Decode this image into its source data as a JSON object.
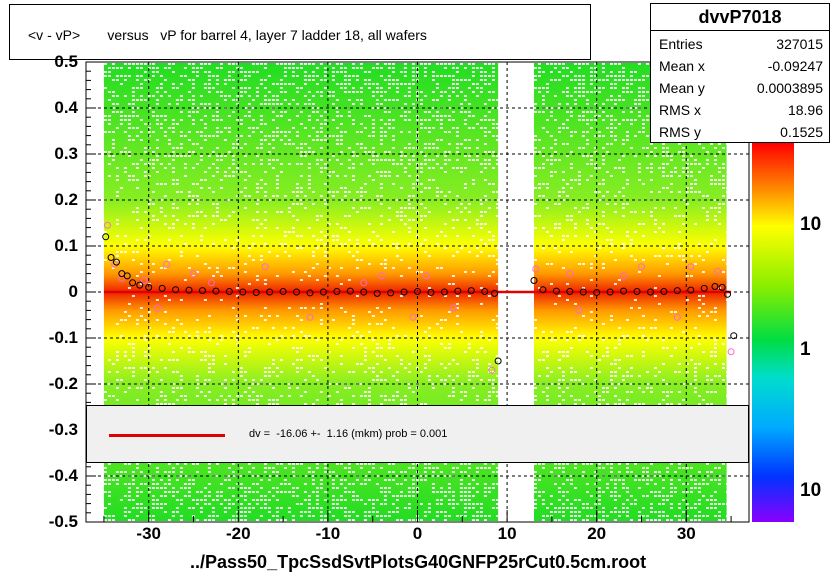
{
  "title": "<v - vP>       versus   vP for barrel 4, layer 7 ladder 18, all wafers",
  "file_label": "../Pass50_TpcSsdSvtPlotsG40GNFP25rCut0.5cm.root",
  "stats": {
    "name": "dvvP7018",
    "rows": [
      {
        "key": "Entries",
        "value": "327015"
      },
      {
        "key": "Mean x",
        "value": "-0.09247"
      },
      {
        "key": "Mean y",
        "value": "0.0003895"
      },
      {
        "key": "RMS x",
        "value": "18.96"
      },
      {
        "key": "RMS y",
        "value": "0.1525"
      }
    ]
  },
  "legend": {
    "text": "dv =  -16.06 +-  1.16 (mkm) prob = 0.001",
    "line_color": "#e00000"
  },
  "colors": {
    "fit_line": "#e00000",
    "green": "#22dd22",
    "yellow": "#ffff00",
    "orange": "#ff8800",
    "red": "#ee2200"
  },
  "chart_data": {
    "type": "heatmap",
    "title": "<v - vP>       versus   vP for barrel 4, layer 7 ladder 18, all wafers",
    "xlim": [
      -37,
      37
    ],
    "ylim": [
      -0.5,
      0.5
    ],
    "x_ticks": [
      -30,
      -20,
      -10,
      0,
      10,
      20,
      30
    ],
    "y_ticks": [
      "-0.5",
      "-0.4",
      "-0.3",
      "-0.2",
      "-0.1",
      "0",
      "0.1",
      "0.2",
      "0.3",
      "0.4",
      "0.5"
    ],
    "y_tick_values": [
      -0.5,
      -0.4,
      -0.3,
      -0.2,
      -0.1,
      0,
      0.1,
      0.2,
      0.3,
      0.4,
      0.5
    ],
    "z_ticks": [
      {
        "label": "10",
        "level": 0.78
      },
      {
        "label": "1",
        "level": 0.45
      },
      {
        "label": "10",
        "level": 0.08
      }
    ],
    "log_z": true,
    "grid": true,
    "data_x_ranges": [
      [
        -35,
        9
      ],
      [
        13,
        34.5
      ]
    ],
    "gridlines_x": [
      -30,
      -20,
      -10,
      0,
      10,
      20,
      30
    ],
    "gridlines_y": [
      -0.4,
      -0.3,
      -0.2,
      -0.1,
      0,
      0.1,
      0.2,
      0.3,
      0.4
    ],
    "fit": {
      "y": 0.0,
      "x_range": [
        -35,
        35
      ]
    },
    "profile_points": [
      {
        "x": -34.8,
        "y": 0.12
      },
      {
        "x": -34.2,
        "y": 0.075
      },
      {
        "x": -33.6,
        "y": 0.065
      },
      {
        "x": -33.0,
        "y": 0.04
      },
      {
        "x": -32.4,
        "y": 0.035
      },
      {
        "x": -31.8,
        "y": 0.02
      },
      {
        "x": -31.0,
        "y": 0.015
      },
      {
        "x": -30.0,
        "y": 0.01
      },
      {
        "x": -28.5,
        "y": 0.008
      },
      {
        "x": -27.0,
        "y": 0.005
      },
      {
        "x": -25.5,
        "y": 0.004
      },
      {
        "x": -24.0,
        "y": 0.003
      },
      {
        "x": -22.5,
        "y": 0.002
      },
      {
        "x": -21.0,
        "y": 0.001
      },
      {
        "x": -19.5,
        "y": 0.0
      },
      {
        "x": -18.0,
        "y": -0.001
      },
      {
        "x": -16.5,
        "y": 0.0
      },
      {
        "x": -15.0,
        "y": 0.001
      },
      {
        "x": -13.5,
        "y": 0.0
      },
      {
        "x": -12.0,
        "y": -0.002
      },
      {
        "x": -10.5,
        "y": 0.0
      },
      {
        "x": -9.0,
        "y": 0.001
      },
      {
        "x": -7.5,
        "y": 0.002
      },
      {
        "x": -6.0,
        "y": 0.0
      },
      {
        "x": -4.5,
        "y": -0.003
      },
      {
        "x": -3.0,
        "y": -0.002
      },
      {
        "x": -1.5,
        "y": 0.0
      },
      {
        "x": 0.0,
        "y": 0.001
      },
      {
        "x": 1.5,
        "y": -0.001
      },
      {
        "x": 3.0,
        "y": 0.0
      },
      {
        "x": 4.5,
        "y": 0.002
      },
      {
        "x": 6.0,
        "y": 0.003
      },
      {
        "x": 7.5,
        "y": 0.001
      },
      {
        "x": 8.6,
        "y": -0.003
      },
      {
        "x": 9.0,
        "y": -0.15
      },
      {
        "x": 13.0,
        "y": 0.025
      },
      {
        "x": 14.0,
        "y": 0.005
      },
      {
        "x": 15.5,
        "y": 0.002
      },
      {
        "x": 17.0,
        "y": 0.001
      },
      {
        "x": 18.5,
        "y": 0.0
      },
      {
        "x": 20.0,
        "y": -0.001
      },
      {
        "x": 21.5,
        "y": 0.0
      },
      {
        "x": 23.0,
        "y": 0.002
      },
      {
        "x": 24.5,
        "y": 0.001
      },
      {
        "x": 26.0,
        "y": 0.0
      },
      {
        "x": 27.5,
        "y": 0.001
      },
      {
        "x": 29.0,
        "y": 0.003
      },
      {
        "x": 30.5,
        "y": 0.004
      },
      {
        "x": 32.0,
        "y": 0.008
      },
      {
        "x": 33.2,
        "y": 0.012
      },
      {
        "x": 34.0,
        "y": 0.01
      },
      {
        "x": 34.6,
        "y": -0.005
      },
      {
        "x": 35.3,
        "y": -0.095
      }
    ],
    "outlier_points": [
      {
        "x": -34.6,
        "y": 0.145
      },
      {
        "x": -33.8,
        "y": 0.06
      },
      {
        "x": -33.0,
        "y": 0.03
      },
      {
        "x": -30.5,
        "y": 0.025
      },
      {
        "x": -29.0,
        "y": -0.035
      },
      {
        "x": -28.0,
        "y": 0.06
      },
      {
        "x": -25.0,
        "y": 0.04
      },
      {
        "x": -23.0,
        "y": 0.02
      },
      {
        "x": -17.0,
        "y": 0.055
      },
      {
        "x": -12.0,
        "y": -0.055
      },
      {
        "x": -6.0,
        "y": 0.02
      },
      {
        "x": -4.0,
        "y": 0.035
      },
      {
        "x": -0.5,
        "y": -0.055
      },
      {
        "x": 1.0,
        "y": 0.035
      },
      {
        "x": 4.0,
        "y": -0.035
      },
      {
        "x": 8.3,
        "y": -0.17
      },
      {
        "x": 13.2,
        "y": 0.05
      },
      {
        "x": 17.0,
        "y": 0.04
      },
      {
        "x": 18.0,
        "y": -0.04
      },
      {
        "x": 23.0,
        "y": 0.035
      },
      {
        "x": 25.0,
        "y": 0.055
      },
      {
        "x": 29.0,
        "y": -0.055
      },
      {
        "x": 30.5,
        "y": 0.055
      },
      {
        "x": 33.5,
        "y": 0.045
      },
      {
        "x": 35.0,
        "y": -0.13
      }
    ]
  }
}
